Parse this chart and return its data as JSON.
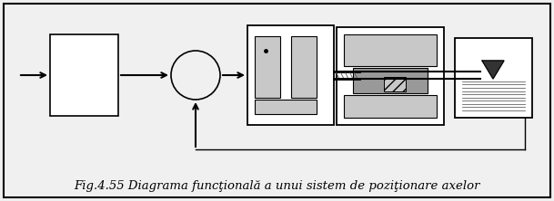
{
  "fig_width": 6.09,
  "fig_height": 2.22,
  "dpi": 100,
  "bg_color": "#f0f0f0",
  "inner_bg": "#f5f5f5",
  "border_color": "#000000",
  "caption": "Fig.4.55 Diagrama funcţională a unui sistem de poziţionare axelor",
  "caption_fontsize": 9.5,
  "lw": 1.0
}
